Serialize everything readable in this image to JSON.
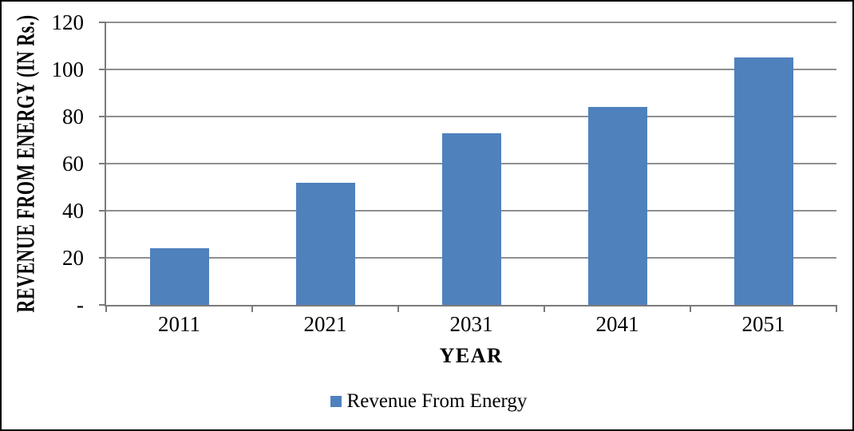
{
  "chart_data": {
    "type": "bar",
    "xlabel": "YEAR",
    "ylabel": "REVENUE FROM ENERGY (IN Rs.)",
    "categories": [
      "2011",
      "2021",
      "2031",
      "2041",
      "2051"
    ],
    "series": [
      {
        "name": "Revenue From Energy",
        "values": [
          24,
          52,
          73,
          84,
          105
        ]
      }
    ],
    "ylim": [
      0,
      120
    ],
    "yticks": [
      {
        "value": 0,
        "label": "-"
      },
      {
        "value": 20,
        "label": "20"
      },
      {
        "value": 40,
        "label": "40"
      },
      {
        "value": 60,
        "label": "60"
      },
      {
        "value": 80,
        "label": "80"
      },
      {
        "value": 100,
        "label": "100"
      },
      {
        "value": 120,
        "label": "120"
      }
    ],
    "grid": "horizontal",
    "legend_position": "bottom-center",
    "colors": {
      "bar_fill": "#4F81BD",
      "gridline": "#8F8F8F",
      "axis_line": "#7A7A7A",
      "text": "#000000",
      "frame_border": "#000000",
      "background": "#FFFFFF"
    }
  }
}
